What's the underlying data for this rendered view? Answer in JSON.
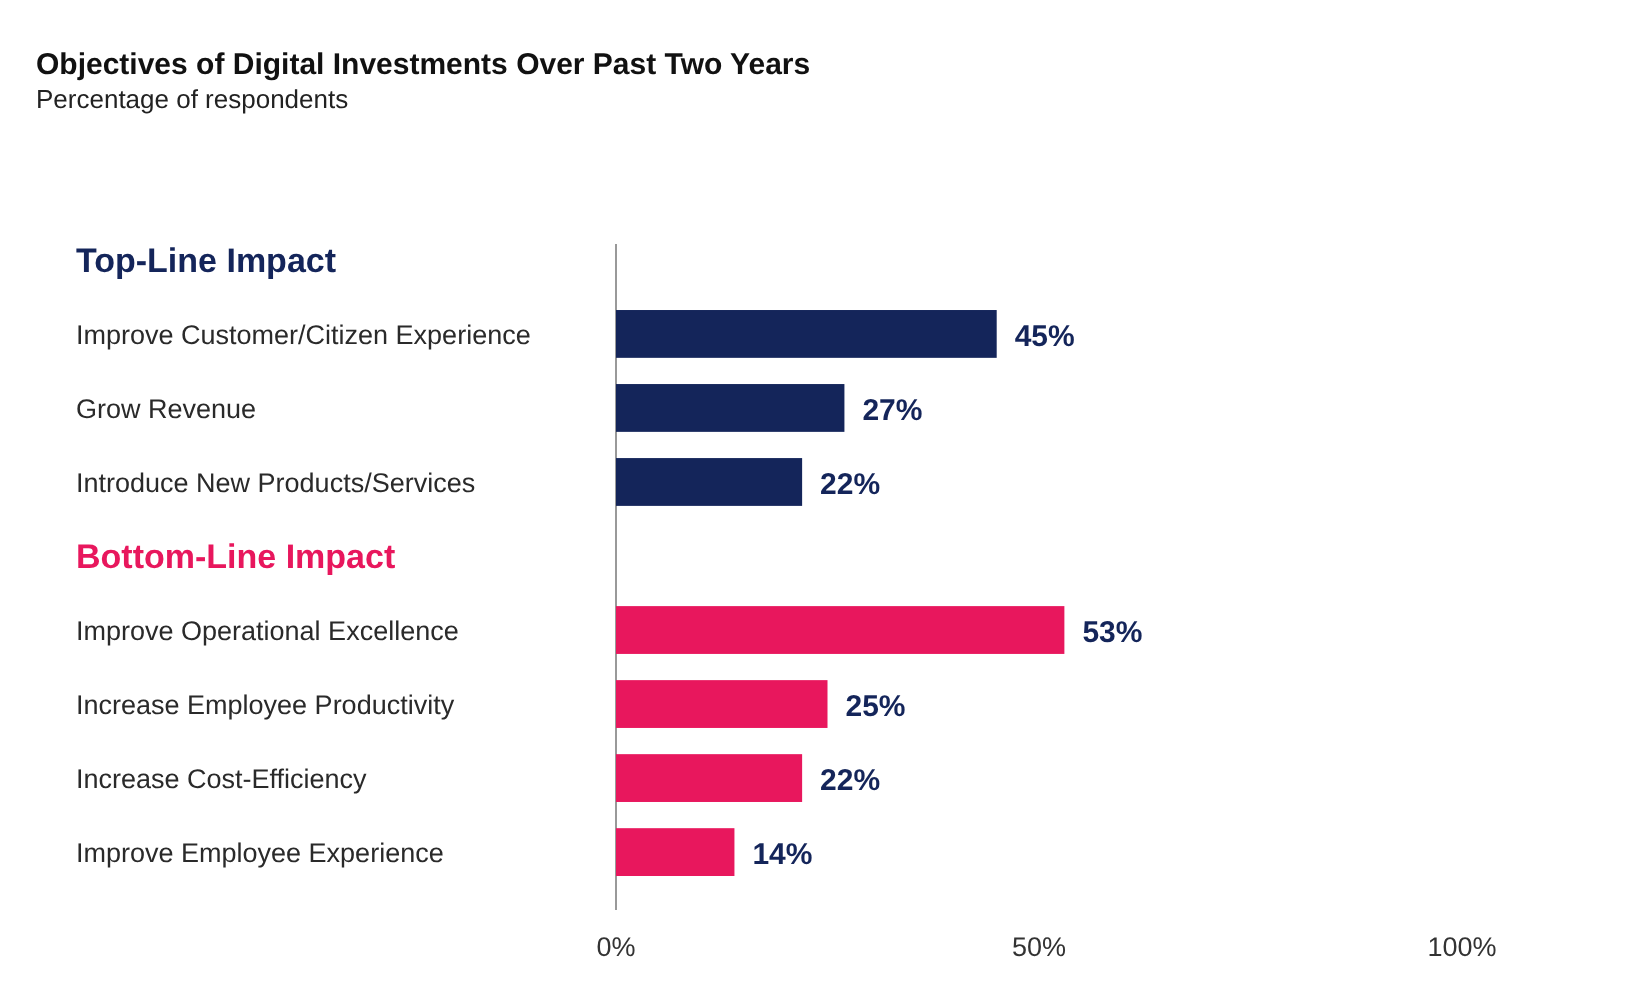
{
  "chart_data": {
    "type": "bar",
    "orientation": "horizontal",
    "title": "Objectives of Digital Investments Over Past Two Years",
    "subtitle": "Percentage of respondents",
    "categories": [
      "Top-Line Impact",
      "Improve Customer/Citizen Experience",
      "Grow Revenue",
      "Introduce New Products/Services",
      "Bottom-Line Impact",
      "Improve Operational Excellence",
      "Increase Employee Productivity",
      "Increase Cost-Efficiency",
      "Improve Employee Experience"
    ],
    "values": [
      null,
      45,
      27,
      22,
      null,
      53,
      25,
      22,
      14
    ],
    "colors": [
      "#14255a",
      "#14255a",
      "#14255a",
      "#14255a",
      "#e8175d",
      "#e8175d",
      "#e8175d",
      "#e8175d",
      "#e8175d"
    ],
    "value_labels": [
      null,
      "45%",
      "27%",
      "22%",
      null,
      "53%",
      "25%",
      "22%",
      "14%"
    ],
    "xlim": [
      0,
      100
    ],
    "xticks": [
      {
        "value": 0,
        "label": "0%"
      },
      {
        "value": 50,
        "label": "50%"
      },
      {
        "value": 100,
        "label": "100%"
      }
    ],
    "grid": false
  }
}
